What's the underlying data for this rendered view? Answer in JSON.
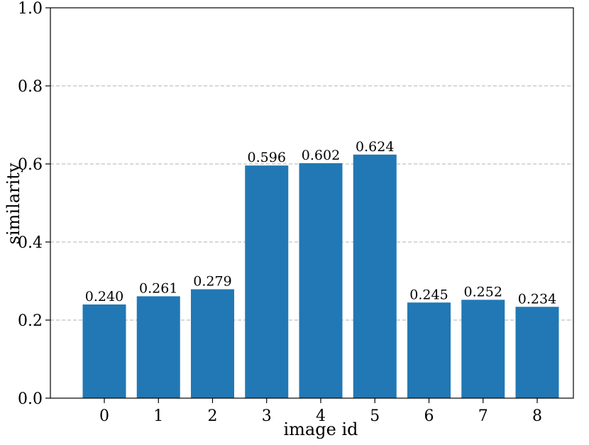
{
  "chart_data": {
    "type": "bar",
    "title": "",
    "xlabel": "image id",
    "ylabel": "similarity",
    "categories": [
      "0",
      "1",
      "2",
      "3",
      "4",
      "5",
      "6",
      "7",
      "8"
    ],
    "values": [
      0.24,
      0.261,
      0.279,
      0.596,
      0.602,
      0.624,
      0.245,
      0.252,
      0.234
    ],
    "value_labels": [
      "0.240",
      "0.261",
      "0.279",
      "0.596",
      "0.602",
      "0.624",
      "0.245",
      "0.252",
      "0.234"
    ],
    "ylim": [
      0.0,
      1.0
    ],
    "yticks": [
      "0.0",
      "0.2",
      "0.4",
      "0.6",
      "0.8",
      "1.0"
    ],
    "grid": "y-axis, dashed",
    "legend": "none",
    "bar_color": "#2178b4",
    "grid_color": "#b0b0b0",
    "axis_color": "#000000"
  }
}
